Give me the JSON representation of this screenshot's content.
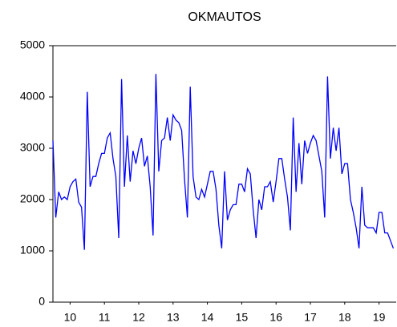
{
  "chart_data": {
    "type": "line",
    "title": "OKMAUTOS",
    "x": [
      10,
      10.083,
      10.167,
      10.25,
      10.333,
      10.417,
      10.5,
      10.583,
      10.667,
      10.75,
      10.833,
      10.917,
      11,
      11.083,
      11.167,
      11.25,
      11.333,
      11.417,
      11.5,
      11.583,
      11.667,
      11.75,
      11.833,
      11.917,
      12,
      12.083,
      12.167,
      12.25,
      12.333,
      12.417,
      12.5,
      12.583,
      12.667,
      12.75,
      12.833,
      12.917,
      13,
      13.083,
      13.167,
      13.25,
      13.333,
      13.417,
      13.5,
      13.583,
      13.667,
      13.75,
      13.833,
      13.917,
      14,
      14.083,
      14.167,
      14.25,
      14.333,
      14.417,
      14.5,
      14.583,
      14.667,
      14.75,
      14.833,
      14.917,
      15,
      15.083,
      15.167,
      15.25,
      15.333,
      15.417,
      15.5,
      15.583,
      15.667,
      15.75,
      15.833,
      15.917,
      16,
      16.083,
      16.167,
      16.25,
      16.333,
      16.417,
      16.5,
      16.583,
      16.667,
      16.75,
      16.833,
      16.917,
      17,
      17.083,
      17.167,
      17.25,
      17.333,
      17.417,
      17.5,
      17.583,
      17.667,
      17.75,
      17.833,
      17.917,
      18,
      18.083,
      18.167,
      18.25,
      18.333,
      18.417,
      18.5,
      18.583,
      18.667,
      18.75,
      18.833,
      18.917,
      19,
      19.083,
      19.167,
      19.25,
      19.333,
      19.417,
      19.5,
      19.583,
      19.667,
      19.75,
      19.833,
      19.917
    ],
    "series": [
      {
        "name": "OKMAUTOS",
        "color": "#0000ff",
        "values": [
          3150,
          1650,
          2150,
          2000,
          2050,
          2000,
          2250,
          2350,
          2400,
          1950,
          1850,
          1020,
          4100,
          2250,
          2450,
          2450,
          2700,
          2900,
          2900,
          3200,
          3300,
          2800,
          2450,
          1250,
          4350,
          2250,
          3250,
          2350,
          2950,
          2700,
          3000,
          3200,
          2650,
          2850,
          2250,
          1300,
          4450,
          2550,
          3150,
          3200,
          3600,
          3150,
          3650,
          3550,
          3500,
          3350,
          2400,
          1650,
          4200,
          2450,
          2050,
          2000,
          2200,
          2050,
          2300,
          2550,
          2550,
          2200,
          1500,
          1050,
          2550,
          1600,
          1800,
          1900,
          1900,
          2300,
          2300,
          2150,
          2600,
          2500,
          1800,
          1250,
          2000,
          1800,
          2250,
          2250,
          2350,
          1950,
          2350,
          2800,
          2800,
          2400,
          2050,
          1400,
          3600,
          2150,
          3100,
          2300,
          3150,
          2900,
          3100,
          3250,
          3150,
          2850,
          2550,
          1650,
          4400,
          2800,
          3400,
          2950,
          3400,
          2500,
          2700,
          2700,
          2000,
          1750,
          1450,
          1050,
          2250,
          1500,
          1450,
          1450,
          1450,
          1350,
          1750,
          1750,
          1350,
          1350,
          1200,
          1050
        ]
      }
    ],
    "xlim": [
      10,
      20
    ],
    "xticks": [
      {
        "value": 10.5,
        "label": "10"
      },
      {
        "value": 11.5,
        "label": "11"
      },
      {
        "value": 12.5,
        "label": "12"
      },
      {
        "value": 13.5,
        "label": "13"
      },
      {
        "value": 14.5,
        "label": "14"
      },
      {
        "value": 15.5,
        "label": "15"
      },
      {
        "value": 16.5,
        "label": "16"
      },
      {
        "value": 17.5,
        "label": "17"
      },
      {
        "value": 18.5,
        "label": "18"
      },
      {
        "value": 19.5,
        "label": "19"
      }
    ],
    "ylim": [
      0,
      5000
    ],
    "yticks": [
      0,
      1000,
      2000,
      3000,
      4000,
      5000
    ]
  }
}
